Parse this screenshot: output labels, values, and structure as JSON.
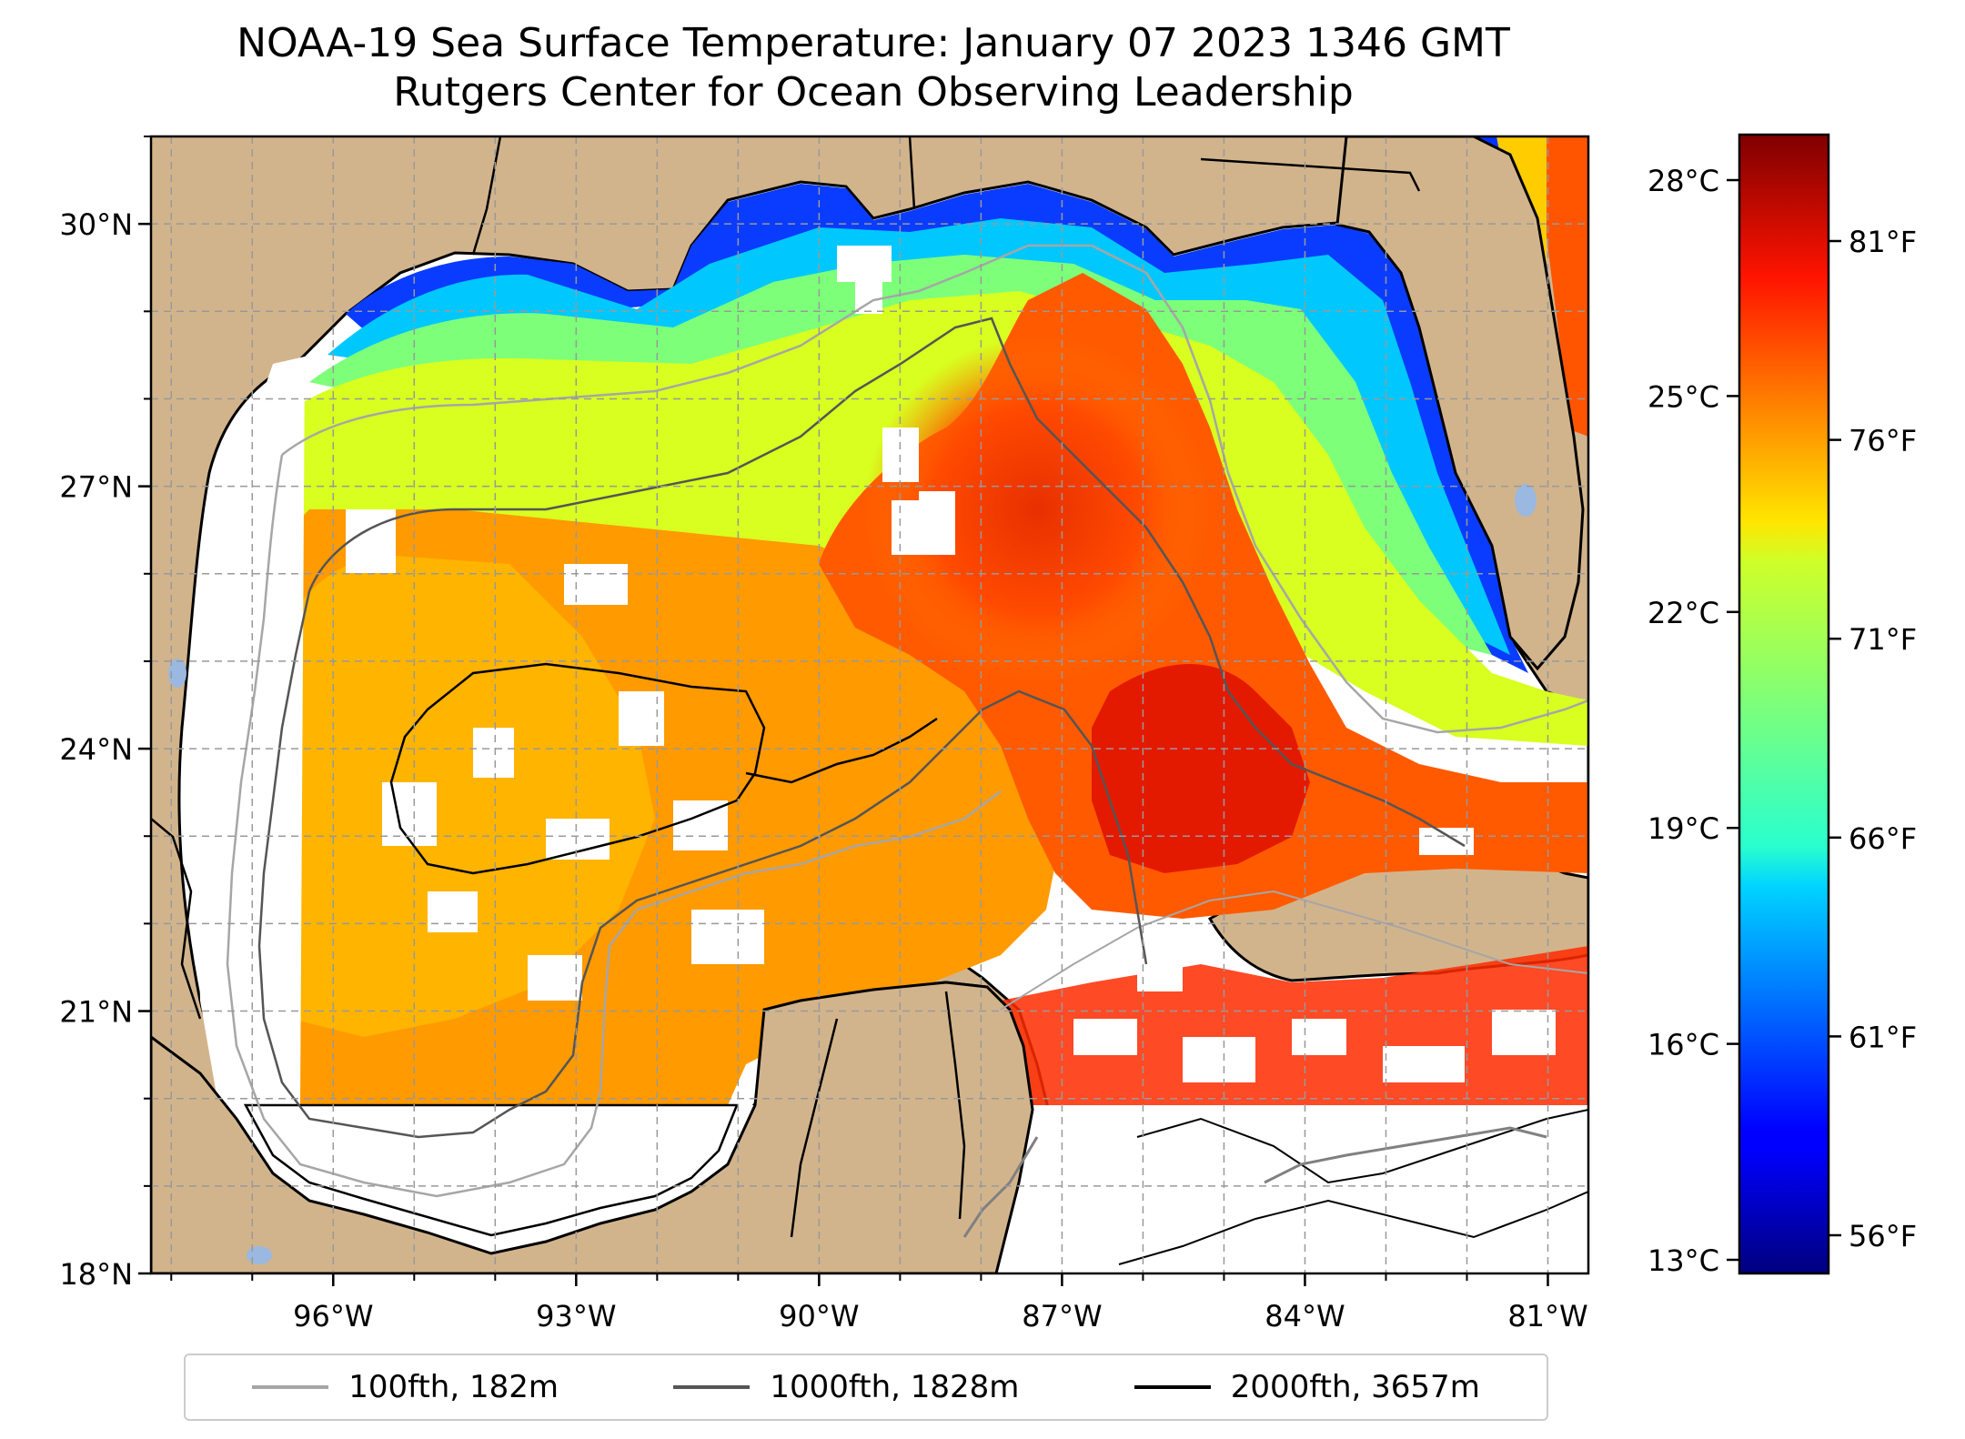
{
  "title": "NOAA-19 Sea Surface Temperature: January 07 2023 1346 GMT",
  "subtitle": "Rutgers Center for Ocean Observing Leadership",
  "map": {
    "lon_range": [
      -98.25,
      -80.5
    ],
    "lat_range": [
      18,
      31
    ],
    "lon_ticks": [
      {
        "value": -96,
        "label": "96°W"
      },
      {
        "value": -93,
        "label": "93°W"
      },
      {
        "value": -90,
        "label": "90°W"
      },
      {
        "value": -87,
        "label": "87°W"
      },
      {
        "value": -84,
        "label": "84°W"
      },
      {
        "value": -81,
        "label": "81°W"
      }
    ],
    "lat_ticks": [
      {
        "value": 18,
        "label": "18°N"
      },
      {
        "value": 21,
        "label": "21°N"
      },
      {
        "value": 24,
        "label": "24°N"
      },
      {
        "value": 27,
        "label": "27°N"
      },
      {
        "value": 30,
        "label": "30°N"
      }
    ],
    "colors": {
      "land": "#d2b48c",
      "no_data": "#ffffff",
      "lakes": "#9bb8e0",
      "grid": "#999999"
    }
  },
  "colorbar": {
    "celsius_ticks": [
      "28°C",
      "25°C",
      "22°C",
      "19°C",
      "16°C",
      "13°C"
    ],
    "fahrenheit_ticks": [
      "81°F",
      "76°F",
      "71°F",
      "66°F",
      "61°F",
      "56°F"
    ],
    "colormap": "jet"
  },
  "legend": [
    {
      "label": "100fth, 182m",
      "color": "#a6a6a6"
    },
    {
      "label": "1000fth, 1828m",
      "color": "#555555"
    },
    {
      "label": "2000fth, 3657m",
      "color": "#000000"
    }
  ]
}
